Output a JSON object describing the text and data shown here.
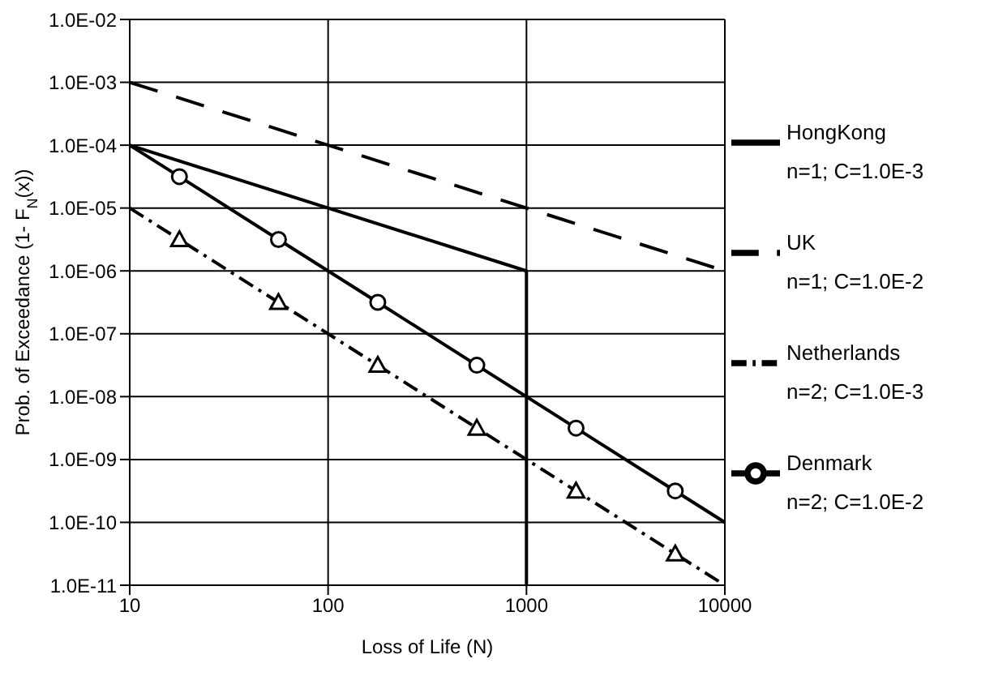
{
  "chart_data": {
    "type": "line",
    "xlabel": "Loss of Life (N)",
    "ylabel": "Prob. of Exceedance (1- F$_{N}$(x))",
    "log": "xy",
    "xlim": [
      10,
      10000
    ],
    "xticks": [
      10,
      100,
      1000,
      10000
    ],
    "ylim": [
      1e-11,
      0.01
    ],
    "yticks": [
      {
        "value": 1e-11,
        "label": "1.0E-11"
      },
      {
        "value": 1e-10,
        "label": "1.0E-10"
      },
      {
        "value": 1e-09,
        "label": "1.0E-09"
      },
      {
        "value": 1e-08,
        "label": "1.0E-08"
      },
      {
        "value": 1e-07,
        "label": "1.0E-07"
      },
      {
        "value": 1e-06,
        "label": "1.0E-06"
      },
      {
        "value": 1e-05,
        "label": "1.0E-05"
      },
      {
        "value": 0.0001,
        "label": "1.0E-04"
      },
      {
        "value": 0.001,
        "label": "1.0E-03"
      },
      {
        "value": 0.01,
        "label": "1.0E-02"
      }
    ],
    "grid": true,
    "legend": "right",
    "series": [
      {
        "name": "HongKong",
        "color": "#000000",
        "line_style": "solid",
        "marker": "none",
        "x": [
          10,
          1000,
          1000
        ],
        "values": [
          0.0001,
          1e-06,
          1e-11
        ]
      },
      {
        "name": "UK",
        "color": "#000000",
        "line_style": "dashed",
        "marker": "none",
        "x": [
          10,
          10000
        ],
        "values": [
          0.001,
          1e-06
        ]
      },
      {
        "name": "Netherlands",
        "color": "#000000",
        "line_style": "dashdot",
        "marker": "triangle",
        "x": [
          10,
          17.8,
          56.2,
          178,
          562,
          1778,
          5623,
          10000
        ],
        "values": [
          1e-05,
          3.16e-06,
          3.16e-07,
          3.16e-08,
          3.16e-09,
          3.16e-10,
          3.16e-11,
          1e-11
        ]
      },
      {
        "name": "Denmark",
        "color": "#000000",
        "line_style": "solid",
        "marker": "circle",
        "x": [
          10,
          17.8,
          56.2,
          178,
          562,
          1778,
          5623,
          10000
        ],
        "values": [
          0.0001,
          3.16e-05,
          3.16e-06,
          3.16e-07,
          3.16e-08,
          3.16e-09,
          3.16e-10,
          1e-10
        ]
      }
    ],
    "annotations": [
      "n=1; C=1.0E-3",
      "n=1; C=1.0E-2",
      "n=2; C=1.0E-3",
      "n=2; C=1.0E-2"
    ]
  }
}
